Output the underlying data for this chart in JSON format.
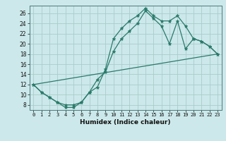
{
  "title": "",
  "xlabel": "Humidex (Indice chaleur)",
  "bg_color": "#cce8ea",
  "grid_color": "#aacccc",
  "line_color": "#2a7a6a",
  "xlim": [
    -0.5,
    23.5
  ],
  "ylim": [
    7,
    27.5
  ],
  "xticks": [
    0,
    1,
    2,
    3,
    4,
    5,
    6,
    7,
    8,
    9,
    10,
    11,
    12,
    13,
    14,
    15,
    16,
    17,
    18,
    19,
    20,
    21,
    22,
    23
  ],
  "yticks": [
    8,
    10,
    12,
    14,
    16,
    18,
    20,
    22,
    24,
    26
  ],
  "line1_x": [
    0,
    1,
    2,
    3,
    4,
    5,
    6,
    7,
    8,
    9,
    10,
    11,
    12,
    13,
    14,
    15,
    16,
    17,
    18,
    19,
    20,
    21,
    22,
    23
  ],
  "line1_y": [
    12.0,
    10.5,
    9.5,
    8.5,
    8.0,
    8.0,
    8.5,
    10.5,
    11.5,
    15.0,
    21.0,
    23.0,
    24.5,
    25.5,
    27.0,
    25.5,
    24.5,
    24.5,
    25.5,
    23.5,
    21.0,
    20.5,
    19.5,
    18.0
  ],
  "line2_x": [
    0,
    1,
    2,
    3,
    4,
    5,
    6,
    7,
    8,
    9,
    10,
    11,
    12,
    13,
    14,
    15,
    16,
    17,
    18,
    19,
    20,
    21,
    22,
    23
  ],
  "line2_y": [
    12.0,
    10.5,
    9.5,
    8.5,
    7.5,
    7.5,
    8.5,
    10.5,
    13.0,
    14.5,
    18.5,
    21.0,
    22.5,
    24.0,
    26.5,
    25.0,
    23.5,
    20.0,
    24.5,
    19.0,
    21.0,
    20.5,
    19.5,
    18.0
  ],
  "line3_x": [
    0,
    23
  ],
  "line3_y": [
    12.0,
    18.0
  ]
}
